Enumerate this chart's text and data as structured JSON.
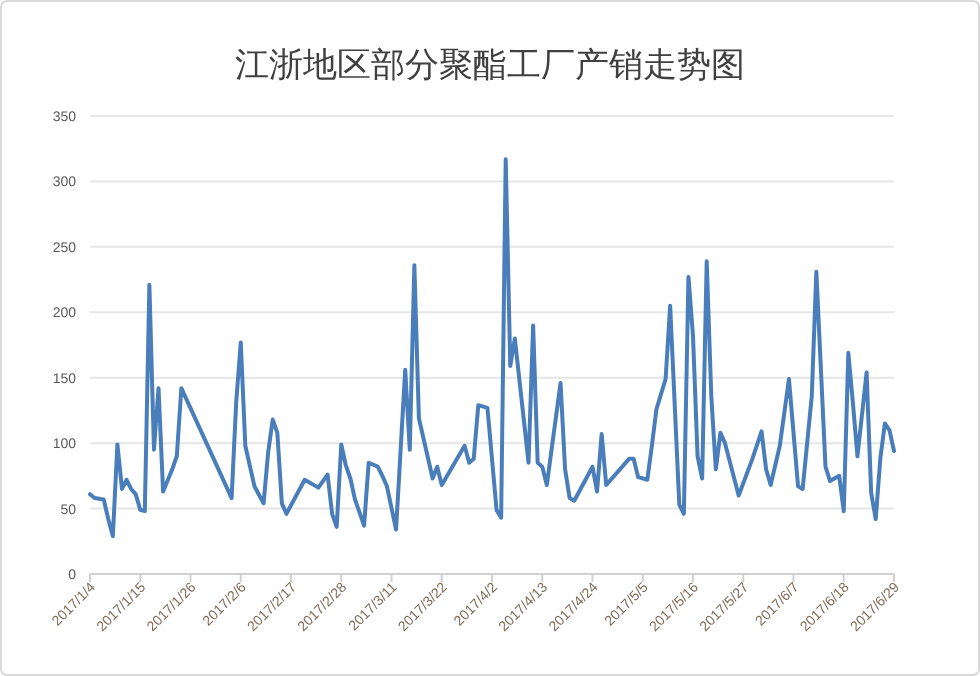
{
  "chart_data": {
    "type": "line",
    "title": "江浙地区部分聚酯工厂产销走势图",
    "x": [
      "2017-01-04",
      "2017-01-05",
      "2017-01-07",
      "2017-01-08",
      "2017-01-09",
      "2017-01-10",
      "2017-01-11",
      "2017-01-12",
      "2017-01-13",
      "2017-01-14",
      "2017-01-15",
      "2017-01-16",
      "2017-01-17",
      "2017-01-18",
      "2017-01-19",
      "2017-01-20",
      "2017-01-22",
      "2017-01-23",
      "2017-01-24",
      "2017-02-04",
      "2017-02-05",
      "2017-02-06",
      "2017-02-07",
      "2017-02-09",
      "2017-02-11",
      "2017-02-12",
      "2017-02-13",
      "2017-02-14",
      "2017-02-15",
      "2017-02-16",
      "2017-02-20",
      "2017-02-23",
      "2017-02-25",
      "2017-02-26",
      "2017-02-27",
      "2017-02-28",
      "2017-03-01",
      "2017-03-02",
      "2017-03-03",
      "2017-03-05",
      "2017-03-06",
      "2017-03-08",
      "2017-03-09",
      "2017-03-10",
      "2017-03-12",
      "2017-03-14",
      "2017-03-15",
      "2017-03-16",
      "2017-03-17",
      "2017-03-20",
      "2017-03-21",
      "2017-03-22",
      "2017-03-27",
      "2017-03-28",
      "2017-03-29",
      "2017-03-30",
      "2017-04-01",
      "2017-04-03",
      "2017-04-04",
      "2017-04-05",
      "2017-04-06",
      "2017-04-07",
      "2017-04-10",
      "2017-04-11",
      "2017-04-12",
      "2017-04-13",
      "2017-04-14",
      "2017-04-17",
      "2017-04-18",
      "2017-04-19",
      "2017-04-20",
      "2017-04-24",
      "2017-04-25",
      "2017-04-26",
      "2017-04-27",
      "2017-05-02",
      "2017-05-03",
      "2017-05-04",
      "2017-05-06",
      "2017-05-07",
      "2017-05-08",
      "2017-05-10",
      "2017-05-11",
      "2017-05-13",
      "2017-05-14",
      "2017-05-15",
      "2017-05-16",
      "2017-05-17",
      "2017-05-18",
      "2017-05-19",
      "2017-05-20",
      "2017-05-21",
      "2017-05-22",
      "2017-05-23",
      "2017-05-26",
      "2017-05-29",
      "2017-05-31",
      "2017-06-01",
      "2017-06-02",
      "2017-06-04",
      "2017-06-06",
      "2017-06-08",
      "2017-06-09",
      "2017-06-11",
      "2017-06-12",
      "2017-06-14",
      "2017-06-15",
      "2017-06-17",
      "2017-06-18",
      "2017-06-19",
      "2017-06-20",
      "2017-06-21",
      "2017-06-23",
      "2017-06-24",
      "2017-06-25",
      "2017-06-26",
      "2017-06-27",
      "2017-06-28",
      "2017-06-29"
    ],
    "series": [
      {
        "color": "#4a7ebb",
        "values": [
          61,
          58,
          57,
          42,
          29,
          99,
          65,
          72,
          65,
          61,
          49,
          48,
          221,
          95,
          142,
          63,
          80,
          90,
          142,
          58,
          131,
          177,
          98,
          67,
          54,
          93,
          118,
          108,
          54,
          46,
          72,
          66,
          76,
          46,
          36,
          99,
          83,
          73,
          57,
          37,
          85,
          82,
          75,
          67,
          34,
          156,
          95,
          236,
          119,
          73,
          82,
          68,
          98,
          85,
          88,
          129,
          127,
          49,
          43,
          317,
          159,
          180,
          85,
          190,
          85,
          82,
          68,
          146,
          80,
          58,
          56,
          82,
          63,
          107,
          68,
          88,
          88,
          74,
          72,
          98,
          126,
          149,
          205,
          53,
          46,
          227,
          182,
          90,
          73,
          239,
          136,
          80,
          108,
          100,
          60,
          88,
          109,
          80,
          68,
          98,
          149,
          67,
          65,
          136,
          231,
          82,
          71,
          75,
          48,
          169,
          131,
          90,
          154,
          62,
          42,
          88,
          115,
          110,
          94
        ]
      }
    ],
    "xlim": [
      "2017-01-04",
      "2017-06-29"
    ],
    "xticks": [
      {
        "value": "2017-01-04",
        "label": "2017/1/4"
      },
      {
        "value": "2017-01-15",
        "label": "2017/1/15"
      },
      {
        "value": "2017-01-26",
        "label": "2017/1/26"
      },
      {
        "value": "2017-02-06",
        "label": "2017/2/6"
      },
      {
        "value": "2017-02-17",
        "label": "2017/2/17"
      },
      {
        "value": "2017-02-28",
        "label": "2017/2/28"
      },
      {
        "value": "2017-03-11",
        "label": "2017/3/11"
      },
      {
        "value": "2017-03-22",
        "label": "2017/3/22"
      },
      {
        "value": "2017-04-02",
        "label": "2017/4/2"
      },
      {
        "value": "2017-04-13",
        "label": "2017/4/13"
      },
      {
        "value": "2017-04-24",
        "label": "2017/4/24"
      },
      {
        "value": "2017-05-05",
        "label": "2017/5/5"
      },
      {
        "value": "2017-05-16",
        "label": "2017/5/16"
      },
      {
        "value": "2017-05-27",
        "label": "2017/5/27"
      },
      {
        "value": "2017-06-07",
        "label": "2017/6/7"
      },
      {
        "value": "2017-06-18",
        "label": "2017/6/18"
      },
      {
        "value": "2017-06-29",
        "label": "2017/6/29"
      }
    ],
    "ylim": [
      0,
      350
    ],
    "yticks": [
      0,
      50,
      100,
      150,
      200,
      250,
      300,
      350
    ],
    "grid": "y",
    "marker": "none",
    "line_style": "solid"
  }
}
